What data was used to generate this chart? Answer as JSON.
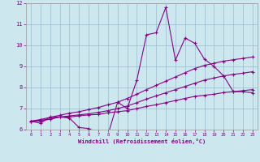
{
  "xlabel": "Windchill (Refroidissement éolien,°C)",
  "bg_color": "#cce8ee",
  "line_color": "#880088",
  "grid_color": "#99bbcc",
  "xlim": [
    -0.5,
    23.5
  ],
  "ylim": [
    6,
    12
  ],
  "yticks": [
    6,
    7,
    8,
    9,
    10,
    11,
    12
  ],
  "xticks": [
    0,
    1,
    2,
    3,
    4,
    5,
    6,
    7,
    8,
    9,
    10,
    11,
    12,
    13,
    14,
    15,
    16,
    17,
    18,
    19,
    20,
    21,
    22,
    23
  ],
  "line1_x": [
    0,
    1,
    2,
    3,
    4,
    5,
    6,
    7,
    8,
    9,
    10,
    11,
    12,
    13,
    14,
    15,
    16,
    17,
    18,
    19,
    20,
    21,
    22,
    23
  ],
  "line1_y": [
    6.4,
    6.3,
    6.6,
    6.6,
    6.55,
    6.1,
    6.05,
    5.85,
    5.75,
    7.3,
    7.0,
    8.35,
    10.5,
    10.6,
    11.8,
    9.3,
    10.35,
    10.1,
    9.35,
    9.0,
    8.55,
    7.8,
    7.8,
    7.75
  ],
  "line2_x": [
    0,
    1,
    2,
    3,
    4,
    5,
    6,
    7,
    8,
    9,
    10,
    11,
    12,
    13,
    14,
    15,
    16,
    17,
    18,
    19,
    20,
    21,
    22,
    23
  ],
  "line2_y": [
    6.4,
    6.4,
    6.5,
    6.6,
    6.6,
    6.65,
    6.7,
    6.72,
    6.8,
    6.85,
    6.9,
    7.0,
    7.1,
    7.18,
    7.28,
    7.38,
    7.48,
    7.58,
    7.63,
    7.68,
    7.76,
    7.8,
    7.85,
    7.9
  ],
  "line3_x": [
    0,
    1,
    2,
    3,
    4,
    5,
    6,
    7,
    8,
    9,
    10,
    11,
    12,
    13,
    14,
    15,
    16,
    17,
    18,
    19,
    20,
    21,
    22,
    23
  ],
  "line3_y": [
    6.4,
    6.45,
    6.5,
    6.6,
    6.65,
    6.7,
    6.75,
    6.82,
    6.9,
    7.0,
    7.12,
    7.28,
    7.45,
    7.6,
    7.75,
    7.9,
    8.05,
    8.2,
    8.35,
    8.45,
    8.55,
    8.62,
    8.68,
    8.75
  ],
  "line4_x": [
    0,
    1,
    2,
    3,
    4,
    5,
    6,
    7,
    8,
    9,
    10,
    11,
    12,
    13,
    14,
    15,
    16,
    17,
    18,
    19,
    20,
    21,
    22,
    23
  ],
  "line4_y": [
    6.4,
    6.48,
    6.58,
    6.68,
    6.78,
    6.85,
    6.95,
    7.05,
    7.18,
    7.3,
    7.48,
    7.68,
    7.9,
    8.1,
    8.3,
    8.5,
    8.7,
    8.9,
    9.05,
    9.15,
    9.25,
    9.32,
    9.38,
    9.45
  ]
}
